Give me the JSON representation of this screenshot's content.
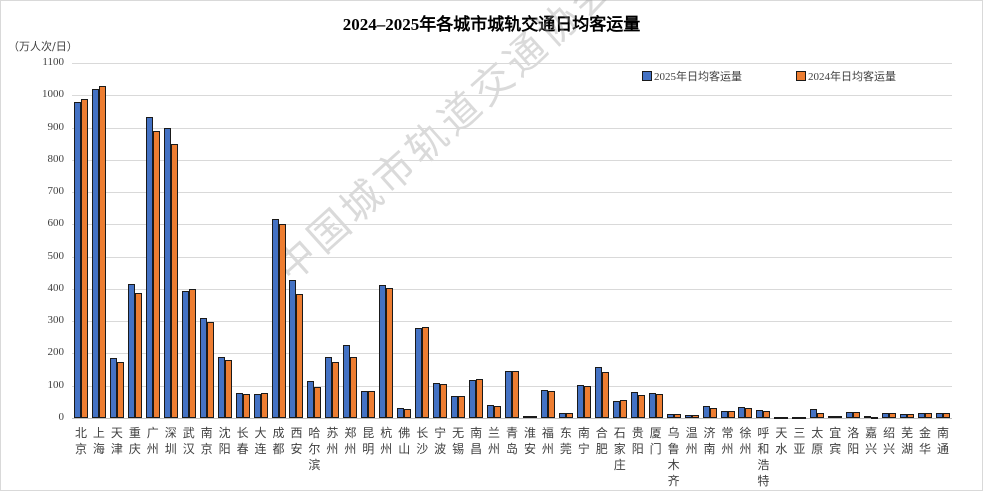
{
  "chart_data": {
    "type": "bar",
    "title": "2024–2025年各城市城轨交通日均客运量",
    "ylabel": "（万人次/日）",
    "xlabel": "",
    "ylim": [
      0,
      1100
    ],
    "yticks": [
      0,
      100,
      200,
      300,
      400,
      500,
      600,
      700,
      800,
      900,
      1000,
      1100
    ],
    "grid": true,
    "legend_position": "top-right",
    "categories": [
      "北京",
      "上海",
      "天津",
      "重庆",
      "广州",
      "深圳",
      "武汉",
      "南京",
      "沈阳",
      "长春",
      "大连",
      "成都",
      "西安",
      "哈尔滨",
      "苏州",
      "郑州",
      "昆明",
      "杭州",
      "佛山",
      "长沙",
      "宁波",
      "无锡",
      "南昌",
      "兰州",
      "青岛",
      "淮安",
      "福州",
      "东莞",
      "南宁",
      "合肥",
      "石家庄",
      "贵阳",
      "厦门",
      "乌鲁木齐",
      "温州",
      "济南",
      "常州",
      "徐州",
      "呼和浩特",
      "天水",
      "三亚",
      "太原",
      "宜宾",
      "洛阳",
      "嘉兴",
      "绍兴",
      "芜湖",
      "金华",
      "南通"
    ],
    "series": [
      {
        "name": "2025年日均客运量",
        "color": "#4472c4",
        "values": [
          980,
          1018,
          185,
          416,
          932,
          900,
          394,
          310,
          190,
          78,
          75,
          618,
          428,
          115,
          190,
          225,
          83,
          412,
          30,
          278,
          110,
          68,
          118,
          40,
          146,
          6,
          88,
          17,
          103,
          157,
          52,
          80,
          77,
          13,
          10,
          37,
          22,
          34,
          24,
          3,
          3,
          29,
          6,
          20,
          5,
          14,
          11,
          16,
          14
        ]
      },
      {
        "name": "2024年日均客运量",
        "color": "#ed7d31",
        "values": [
          988,
          1030,
          175,
          388,
          890,
          848,
          400,
          298,
          180,
          75,
          76,
          602,
          385,
          97,
          175,
          190,
          85,
          402,
          28,
          282,
          106,
          68,
          120,
          38,
          145,
          6,
          83,
          14,
          100,
          142,
          56,
          70,
          73,
          12,
          9,
          32,
          22,
          31,
          22,
          3,
          3,
          15,
          6,
          20,
          2,
          14,
          11,
          14,
          14
        ]
      }
    ]
  },
  "watermark": "中国城市轨道交通协会"
}
